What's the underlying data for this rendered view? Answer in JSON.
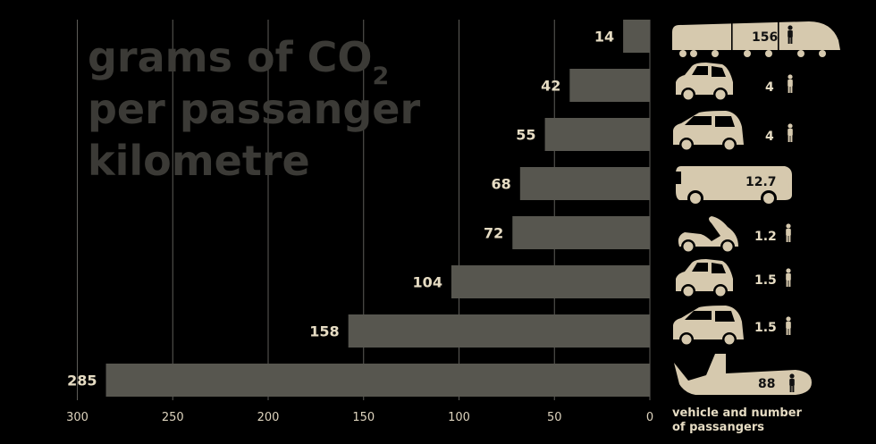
{
  "chart_data": {
    "type": "bar",
    "orientation": "horizontal",
    "title_lines": [
      "grams of CO",
      "per passanger",
      "kilometre"
    ],
    "title_subscript": "2",
    "values": [
      14,
      42,
      55,
      68,
      72,
      104,
      158,
      285
    ],
    "value_labels": [
      "14",
      "42",
      "55",
      "68",
      "72",
      "104",
      "158",
      "285"
    ],
    "vehicle_icons": [
      "train-icon",
      "small-car-icon",
      "minivan-icon",
      "bus-icon",
      "scooter-icon",
      "small-car-icon",
      "minivan-icon",
      "airplane-icon"
    ],
    "passengers": [
      "156",
      "4",
      "4",
      "12.7",
      "1.2",
      "1.5",
      "1.5",
      "88"
    ],
    "xticks": [
      300,
      250,
      200,
      150,
      100,
      50,
      0
    ],
    "xlim": [
      0,
      300
    ],
    "x_axis_reversed": true,
    "grid": true,
    "footnote_lines": [
      "vehicle and number",
      "of passangers"
    ]
  },
  "colors": {
    "background": "#000000",
    "bar": "#57564f",
    "title": "#3b3a36",
    "vehicle": "#d6c9ae",
    "text": "#e6dcc3"
  }
}
